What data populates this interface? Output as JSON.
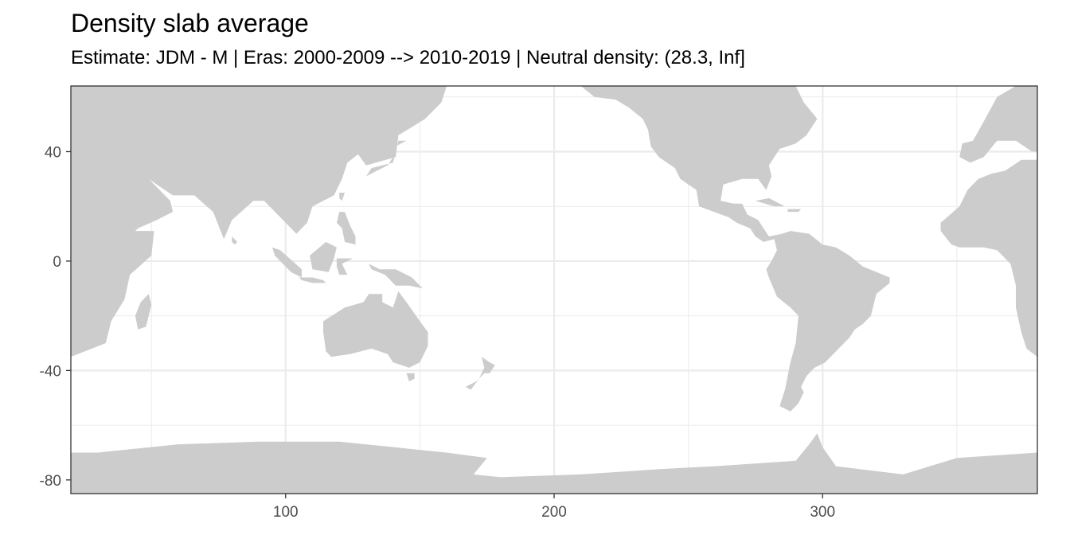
{
  "chart_data": {
    "type": "heatmap",
    "title": "Density slab average",
    "subtitle": "Estimate: JDM - M | Eras: 2000-2009 --> 2010-2019 | Neutral density: (28.3, Inf]",
    "xlabel": "",
    "ylabel": "",
    "xlim": [
      20,
      380
    ],
    "ylim": [
      -85,
      64
    ],
    "x_ticks": [
      100,
      200,
      300
    ],
    "y_ticks": [
      40,
      0,
      -40,
      -80
    ],
    "x_minor_gridlines": [
      50,
      150,
      250,
      350
    ],
    "y_minor_gridlines": [
      60,
      20,
      -20,
      -60
    ],
    "grid": true,
    "land_color": "#cccccc",
    "ocean_values": "not shown",
    "landmasses": [
      {
        "name": "eurasia-africa-west",
        "outline": [
          [
            20,
            64
          ],
          [
            160,
            64
          ],
          [
            158,
            58
          ],
          [
            152,
            52
          ],
          [
            142,
            46
          ],
          [
            141,
            38
          ],
          [
            130,
            35
          ],
          [
            127,
            39
          ],
          [
            123,
            36
          ],
          [
            121,
            30
          ],
          [
            118,
            24
          ],
          [
            110,
            20
          ],
          [
            108,
            14
          ],
          [
            104,
            10
          ],
          [
            100,
            14
          ],
          [
            97,
            17
          ],
          [
            92,
            22
          ],
          [
            88,
            22
          ],
          [
            80,
            15
          ],
          [
            77,
            8
          ],
          [
            73,
            18
          ],
          [
            66,
            24
          ],
          [
            58,
            24
          ],
          [
            52,
            28
          ],
          [
            49,
            30
          ],
          [
            57,
            22
          ],
          [
            58,
            18
          ],
          [
            52,
            15
          ],
          [
            45,
            12
          ],
          [
            44,
            11
          ],
          [
            51,
            11
          ],
          [
            50,
            2
          ],
          [
            42,
            -5
          ],
          [
            40,
            -14
          ],
          [
            35,
            -22
          ],
          [
            33,
            -30
          ],
          [
            20,
            -35
          ]
        ]
      },
      {
        "name": "madagascar",
        "outline": [
          [
            49,
            -12
          ],
          [
            50,
            -16
          ],
          [
            48,
            -24
          ],
          [
            45,
            -25
          ],
          [
            44,
            -20
          ],
          [
            46,
            -15
          ]
        ]
      },
      {
        "name": "sri-lanka",
        "outline": [
          [
            80,
            9
          ],
          [
            82,
            7
          ],
          [
            81,
            6
          ],
          [
            80,
            7
          ]
        ]
      },
      {
        "name": "japan",
        "outline": [
          [
            130,
            31
          ],
          [
            132,
            34
          ],
          [
            136,
            35
          ],
          [
            140,
            36
          ],
          [
            141,
            40
          ],
          [
            142,
            44
          ],
          [
            145,
            44
          ],
          [
            141,
            42
          ],
          [
            140,
            38
          ],
          [
            138,
            35
          ],
          [
            134,
            33
          ]
        ]
      },
      {
        "name": "taiwan",
        "outline": [
          [
            120,
            25
          ],
          [
            122,
            25
          ],
          [
            121,
            22
          ],
          [
            120,
            23
          ]
        ]
      },
      {
        "name": "philippines",
        "outline": [
          [
            120,
            18
          ],
          [
            122,
            18
          ],
          [
            124,
            13
          ],
          [
            126,
            9
          ],
          [
            126,
            6
          ],
          [
            122,
            7
          ],
          [
            121,
            12
          ],
          [
            119,
            14
          ]
        ]
      },
      {
        "name": "sumatra",
        "outline": [
          [
            95,
            5
          ],
          [
            98,
            4
          ],
          [
            106,
            -3
          ],
          [
            106,
            -6
          ],
          [
            102,
            -4
          ],
          [
            96,
            2
          ]
        ]
      },
      {
        "name": "borneo",
        "outline": [
          [
            109,
            2
          ],
          [
            115,
            7
          ],
          [
            119,
            5
          ],
          [
            118,
            1
          ],
          [
            116,
            -4
          ],
          [
            110,
            -3
          ]
        ]
      },
      {
        "name": "java",
        "outline": [
          [
            105,
            -6
          ],
          [
            110,
            -6
          ],
          [
            114,
            -7
          ],
          [
            115,
            -8
          ],
          [
            110,
            -8
          ],
          [
            106,
            -7
          ]
        ]
      },
      {
        "name": "sulawesi",
        "outline": [
          [
            119,
            1
          ],
          [
            125,
            1
          ],
          [
            121,
            -1
          ],
          [
            123,
            -5
          ],
          [
            120,
            -5
          ],
          [
            119,
            -2
          ]
        ]
      },
      {
        "name": "new-guinea",
        "outline": [
          [
            131,
            -1
          ],
          [
            135,
            -3
          ],
          [
            141,
            -3
          ],
          [
            147,
            -6
          ],
          [
            151,
            -10
          ],
          [
            146,
            -9
          ],
          [
            141,
            -9
          ],
          [
            137,
            -5
          ],
          [
            132,
            -3
          ]
        ]
      },
      {
        "name": "australia",
        "outline": [
          [
            114,
            -22
          ],
          [
            122,
            -17
          ],
          [
            129,
            -15
          ],
          [
            131,
            -12
          ],
          [
            136,
            -12
          ],
          [
            136,
            -15
          ],
          [
            140,
            -17
          ],
          [
            142,
            -11
          ],
          [
            145,
            -15
          ],
          [
            150,
            -22
          ],
          [
            153,
            -26
          ],
          [
            153,
            -31
          ],
          [
            150,
            -37
          ],
          [
            146,
            -39
          ],
          [
            140,
            -37
          ],
          [
            138,
            -34
          ],
          [
            132,
            -32
          ],
          [
            124,
            -34
          ],
          [
            117,
            -35
          ],
          [
            115,
            -33
          ],
          [
            114,
            -26
          ]
        ]
      },
      {
        "name": "tasmania",
        "outline": [
          [
            145,
            -41
          ],
          [
            148,
            -41
          ],
          [
            148,
            -43
          ],
          [
            146,
            -44
          ]
        ]
      },
      {
        "name": "new-zealand",
        "outline": [
          [
            173,
            -35
          ],
          [
            176,
            -37
          ],
          [
            178,
            -38
          ],
          [
            176,
            -41
          ],
          [
            174,
            -41
          ],
          [
            171,
            -44
          ],
          [
            167,
            -46
          ],
          [
            169,
            -47
          ],
          [
            172,
            -43
          ],
          [
            174,
            -39
          ]
        ]
      },
      {
        "name": "americas",
        "outline": [
          [
            210,
            64
          ],
          [
            290,
            64
          ],
          [
            293,
            58
          ],
          [
            298,
            52
          ],
          [
            294,
            46
          ],
          [
            290,
            43
          ],
          [
            284,
            41
          ],
          [
            280,
            35
          ],
          [
            281,
            31
          ],
          [
            279,
            26
          ],
          [
            276,
            30
          ],
          [
            270,
            30
          ],
          [
            263,
            28
          ],
          [
            262,
            22
          ],
          [
            267,
            21
          ],
          [
            270,
            21
          ],
          [
            272,
            17
          ],
          [
            276,
            15
          ],
          [
            280,
            9
          ],
          [
            285,
            10
          ],
          [
            288,
            11
          ],
          [
            295,
            10
          ],
          [
            300,
            6
          ],
          [
            305,
            5
          ],
          [
            310,
            2
          ],
          [
            315,
            -2
          ],
          [
            325,
            -6
          ],
          [
            325,
            -8
          ],
          [
            320,
            -12
          ],
          [
            318,
            -20
          ],
          [
            315,
            -23
          ],
          [
            312,
            -25
          ],
          [
            310,
            -28
          ],
          [
            305,
            -33
          ],
          [
            301,
            -37
          ],
          [
            297,
            -39
          ],
          [
            294,
            -42
          ],
          [
            292,
            -46
          ],
          [
            293,
            -48
          ],
          [
            291,
            -52
          ],
          [
            288,
            -55
          ],
          [
            284,
            -53
          ],
          [
            286,
            -47
          ],
          [
            287,
            -42
          ],
          [
            288,
            -37
          ],
          [
            290,
            -30
          ],
          [
            291,
            -20
          ],
          [
            288,
            -17
          ],
          [
            283,
            -13
          ],
          [
            280,
            -6
          ],
          [
            279,
            -3
          ],
          [
            281,
            0
          ],
          [
            283,
            4
          ],
          [
            282,
            8
          ],
          [
            278,
            7
          ],
          [
            275,
            9
          ],
          [
            273,
            12
          ],
          [
            268,
            14
          ],
          [
            265,
            16
          ],
          [
            254,
            20
          ],
          [
            253,
            26
          ],
          [
            247,
            30
          ],
          [
            245,
            34
          ],
          [
            239,
            38
          ],
          [
            236,
            42
          ],
          [
            235,
            48
          ],
          [
            233,
            52
          ],
          [
            228,
            56
          ],
          [
            223,
            59
          ],
          [
            215,
            60
          ]
        ]
      },
      {
        "name": "cuba",
        "outline": [
          [
            275,
            22
          ],
          [
            280,
            23
          ],
          [
            286,
            20
          ],
          [
            282,
            20
          ]
        ]
      },
      {
        "name": "hispaniola",
        "outline": [
          [
            287,
            19
          ],
          [
            292,
            19
          ],
          [
            291,
            18
          ],
          [
            287,
            18
          ]
        ]
      },
      {
        "name": "africa-east",
        "outline": [
          [
            380,
            37
          ],
          [
            374,
            37
          ],
          [
            368,
            33
          ],
          [
            363,
            32
          ],
          [
            358,
            30
          ],
          [
            354,
            26
          ],
          [
            351,
            20
          ],
          [
            344,
            14
          ],
          [
            344,
            11
          ],
          [
            348,
            6
          ],
          [
            351,
            5
          ],
          [
            356,
            5
          ],
          [
            360,
            5
          ],
          [
            365,
            4
          ],
          [
            370,
            -1
          ],
          [
            372,
            -9
          ],
          [
            372,
            -17
          ],
          [
            374,
            -26
          ],
          [
            376,
            -32
          ],
          [
            380,
            -35
          ]
        ]
      },
      {
        "name": "europe-east",
        "outline": [
          [
            380,
            64
          ],
          [
            372,
            64
          ],
          [
            365,
            60
          ],
          [
            360,
            51
          ],
          [
            356,
            44
          ],
          [
            352,
            43
          ],
          [
            351,
            38
          ],
          [
            355,
            36
          ],
          [
            360,
            38
          ],
          [
            365,
            44
          ],
          [
            372,
            44
          ],
          [
            378,
            40
          ],
          [
            380,
            40
          ]
        ]
      },
      {
        "name": "antarctica",
        "outline": [
          [
            20,
            -70
          ],
          [
            30,
            -70
          ],
          [
            60,
            -67
          ],
          [
            90,
            -66
          ],
          [
            120,
            -66
          ],
          [
            160,
            -70
          ],
          [
            175,
            -72
          ],
          [
            170,
            -78
          ],
          [
            180,
            -79
          ],
          [
            210,
            -78
          ],
          [
            240,
            -76
          ],
          [
            260,
            -75
          ],
          [
            290,
            -73
          ],
          [
            295,
            -67
          ],
          [
            298,
            -63
          ],
          [
            300,
            -68
          ],
          [
            305,
            -75
          ],
          [
            330,
            -78
          ],
          [
            350,
            -72
          ],
          [
            380,
            -70
          ],
          [
            380,
            -85
          ],
          [
            20,
            -85
          ]
        ]
      }
    ]
  }
}
